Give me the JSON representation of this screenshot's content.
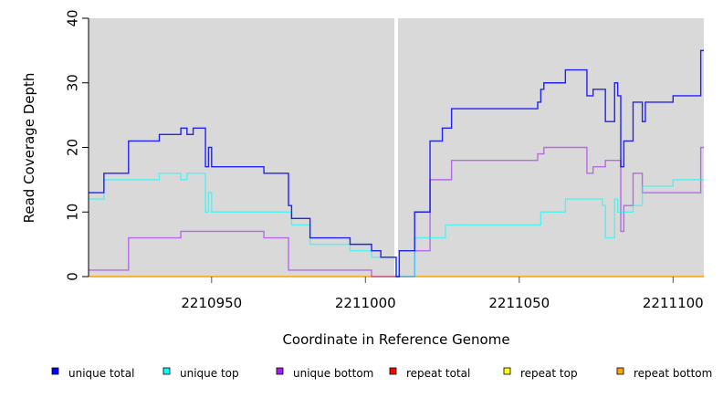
{
  "chart_data": {
    "type": "line",
    "style": "step",
    "title": "",
    "xlabel": "Coordinate in Reference Genome",
    "ylabel": "Read Coverage Depth",
    "xlim": [
      2210910,
      2211110
    ],
    "ylim": [
      0,
      40
    ],
    "xticks": [
      2210950,
      2211000,
      2211050,
      2211100
    ],
    "xtick_labels": [
      "2210950",
      "2211000",
      "2211050",
      "2211100"
    ],
    "yticks": [
      0,
      10,
      20,
      30,
      40
    ],
    "ytick_labels": [
      "0",
      "10",
      "20",
      "30",
      "40"
    ],
    "gap_marker_x": 2211010,
    "legend_position": "bottom",
    "series": [
      {
        "name": "unique total",
        "color": "#0000ff",
        "steps": [
          [
            2210910,
            13
          ],
          [
            2210915,
            16
          ],
          [
            2210923,
            21
          ],
          [
            2210933,
            22
          ],
          [
            2210940,
            23
          ],
          [
            2210942,
            22
          ],
          [
            2210944,
            23
          ],
          [
            2210948,
            17
          ],
          [
            2210949,
            20
          ],
          [
            2210950,
            17
          ],
          [
            2210967,
            16
          ],
          [
            2210975,
            11
          ],
          [
            2210976,
            9
          ],
          [
            2210982,
            6
          ],
          [
            2210995,
            5
          ],
          [
            2211002,
            4
          ],
          [
            2211005,
            3
          ],
          [
            2211010,
            0
          ],
          [
            2211011,
            4
          ],
          [
            2211016,
            10
          ],
          [
            2211021,
            21
          ],
          [
            2211025,
            23
          ],
          [
            2211028,
            26
          ],
          [
            2211056,
            27
          ],
          [
            2211057,
            29
          ],
          [
            2211058,
            30
          ],
          [
            2211065,
            32
          ],
          [
            2211072,
            28
          ],
          [
            2211074,
            29
          ],
          [
            2211078,
            24
          ],
          [
            2211081,
            30
          ],
          [
            2211082,
            28
          ],
          [
            2211083,
            17
          ],
          [
            2211084,
            21
          ],
          [
            2211087,
            27
          ],
          [
            2211090,
            24
          ],
          [
            2211091,
            27
          ],
          [
            2211100,
            28
          ],
          [
            2211109,
            35
          ],
          [
            2211110,
            35
          ]
        ]
      },
      {
        "name": "unique top",
        "color": "#00ffff",
        "steps": [
          [
            2210910,
            12
          ],
          [
            2210915,
            15
          ],
          [
            2210933,
            16
          ],
          [
            2210940,
            15
          ],
          [
            2210942,
            16
          ],
          [
            2210948,
            10
          ],
          [
            2210949,
            13
          ],
          [
            2210950,
            10
          ],
          [
            2210976,
            8
          ],
          [
            2210982,
            5
          ],
          [
            2210995,
            4
          ],
          [
            2211002,
            3
          ],
          [
            2211010,
            0
          ],
          [
            2211016,
            6
          ],
          [
            2211026,
            8
          ],
          [
            2211057,
            10
          ],
          [
            2211065,
            12
          ],
          [
            2211077,
            11
          ],
          [
            2211078,
            6
          ],
          [
            2211081,
            12
          ],
          [
            2211082,
            10
          ],
          [
            2211087,
            11
          ],
          [
            2211090,
            14
          ],
          [
            2211100,
            15
          ],
          [
            2211110,
            15
          ]
        ]
      },
      {
        "name": "unique bottom",
        "color": "#a020f0",
        "steps": [
          [
            2210910,
            1
          ],
          [
            2210923,
            6
          ],
          [
            2210940,
            7
          ],
          [
            2210967,
            6
          ],
          [
            2210975,
            1
          ],
          [
            2211002,
            0
          ],
          [
            2211016,
            4
          ],
          [
            2211021,
            15
          ],
          [
            2211028,
            18
          ],
          [
            2211056,
            19
          ],
          [
            2211058,
            20
          ],
          [
            2211072,
            16
          ],
          [
            2211074,
            17
          ],
          [
            2211078,
            18
          ],
          [
            2211083,
            7
          ],
          [
            2211084,
            11
          ],
          [
            2211087,
            16
          ],
          [
            2211090,
            13
          ],
          [
            2211109,
            20
          ],
          [
            2211110,
            20
          ]
        ]
      },
      {
        "name": "repeat total",
        "color": "#ff0000",
        "steps": [
          [
            2210910,
            0
          ],
          [
            2211110,
            0
          ]
        ]
      },
      {
        "name": "repeat top",
        "color": "#ffff00",
        "steps": [
          [
            2210910,
            0
          ],
          [
            2211110,
            0
          ]
        ]
      },
      {
        "name": "repeat bottom",
        "color": "#ffa500",
        "steps": [
          [
            2210910,
            0
          ],
          [
            2211110,
            0
          ]
        ]
      }
    ]
  }
}
